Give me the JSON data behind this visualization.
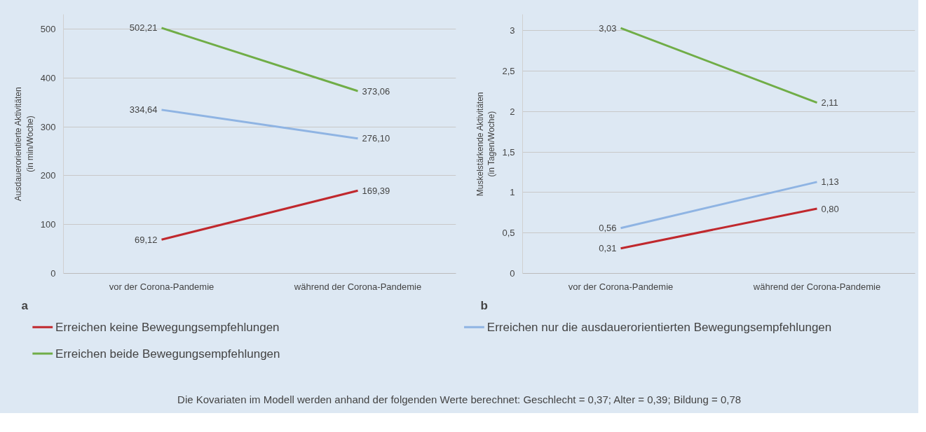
{
  "chart_data": [
    {
      "type": "line",
      "ylabel": "Ausdauerorientierte Aktivitäten\n(in min/Woche)",
      "categories": [
        "vor der Corona-Pandemie",
        "während der Corona-Pandemie"
      ],
      "ylim": [
        0,
        530
      ],
      "yticks": [
        0,
        100,
        200,
        300,
        400,
        500
      ],
      "grid": "y",
      "legend": "bottom",
      "marker": "none",
      "line_style": "solid",
      "annotations": [
        "a"
      ],
      "series": [
        {
          "name": "Erreichen keine Bewegungsempfehlungen",
          "color": "#c0282d",
          "values": [
            69.12,
            169.39
          ],
          "value_labels": [
            "69,12",
            "169,39"
          ]
        },
        {
          "name": "Erreichen nur die ausdauerorientierten Bewegungsempfehlungen",
          "color": "#8fb4e3",
          "values": [
            334.64,
            276.1
          ],
          "value_labels": [
            "334,64",
            "276,10"
          ]
        },
        {
          "name": "Erreichen beide Bewegungsempfehlungen",
          "color": "#70ad47",
          "values": [
            502.21,
            373.06
          ],
          "value_labels": [
            "502,21",
            "373,06"
          ]
        }
      ]
    },
    {
      "type": "line",
      "ylabel": "Muskelstärkende Aktivitäten\n(in Tagen/Woche)",
      "categories": [
        "vor der Corona-Pandemie",
        "während der Corona-Pandemie"
      ],
      "ylim": [
        0,
        3.2
      ],
      "yticks": [
        0,
        {
          "value": 0.5,
          "label": "0,5"
        },
        1,
        {
          "value": 1.5,
          "label": "1,5"
        },
        2,
        {
          "value": 2.5,
          "label": "2,5"
        },
        3
      ],
      "grid": "y",
      "marker": "none",
      "line_style": "solid",
      "annotations": [
        "b",
        "Die Kovariaten im Modell werden anhand der folgenden Werte berechnet: Geschlecht = 0,37; Alter = 0,39; Bildung = 0,78"
      ],
      "series": [
        {
          "color": "#c0282d",
          "values": [
            0.31,
            0.8
          ],
          "value_labels": [
            "0,31",
            "0,80"
          ]
        },
        {
          "color": "#8fb4e3",
          "values": [
            0.56,
            1.13
          ],
          "value_labels": [
            "0,56",
            "1,13"
          ]
        },
        {
          "color": "#70ad47",
          "values": [
            3.03,
            2.11
          ],
          "value_labels": [
            "3,03",
            "2,11"
          ]
        }
      ]
    }
  ]
}
